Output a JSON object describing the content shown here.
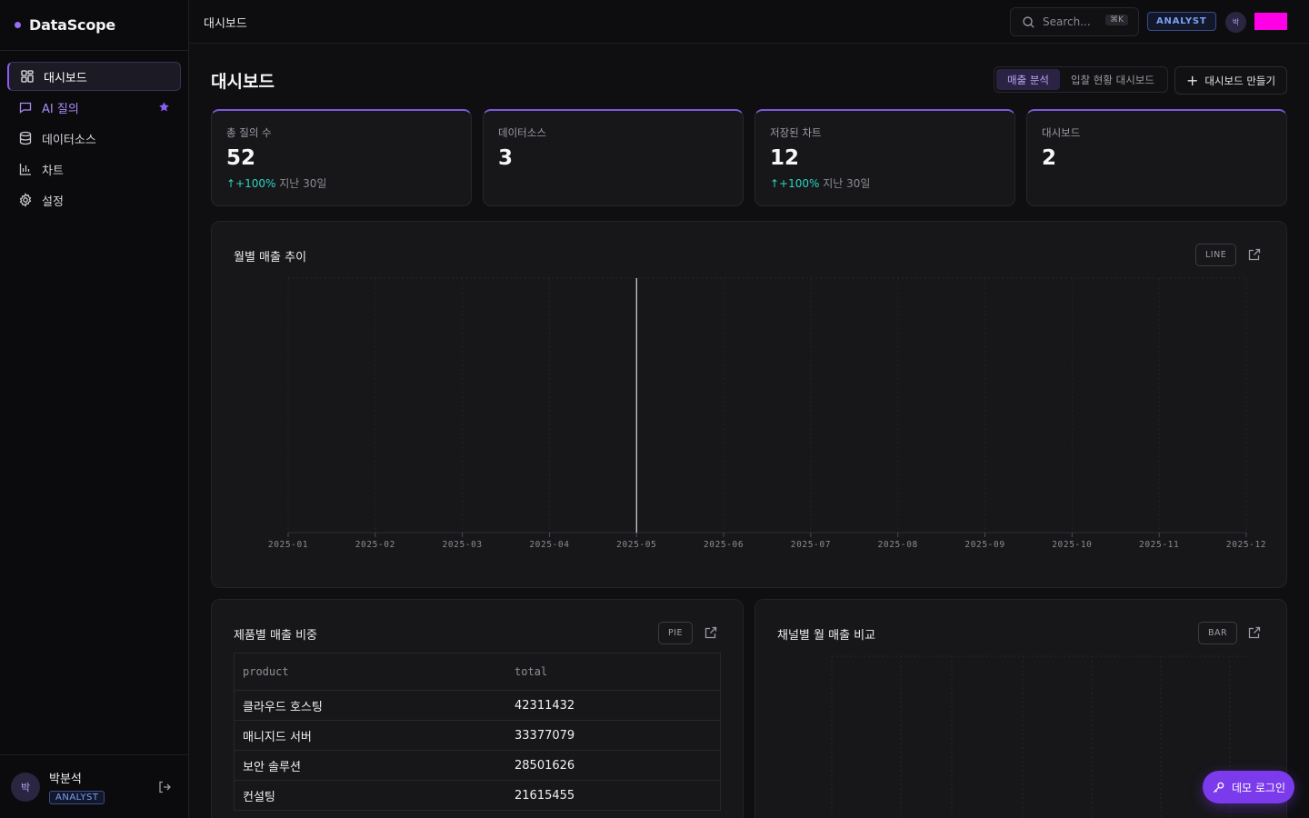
{
  "brand": {
    "name": "DataScope",
    "accent": "#9b6cf5"
  },
  "sidebar": {
    "items": [
      {
        "label": "대시보드",
        "icon": "dashboard-grid-icon",
        "active": true
      },
      {
        "label": "AI 질의",
        "icon": "chat-icon",
        "starred": true
      },
      {
        "label": "데이터소스",
        "icon": "database-icon"
      },
      {
        "label": "차트",
        "icon": "bar-chart-icon"
      },
      {
        "label": "설정",
        "icon": "gear-icon"
      }
    ],
    "user": {
      "name": "박분석",
      "initial": "박",
      "role": "ANALYST"
    }
  },
  "topbar": {
    "breadcrumb": "대시보드",
    "search_placeholder": "Search...",
    "search_shortcut": "⌘K",
    "role_badge": "ANALYST",
    "avatar_initial": "박"
  },
  "page": {
    "title": "대시보드",
    "tabs": [
      {
        "label": "매출 분석",
        "active": true
      },
      {
        "label": "입찰 현황 대시보드",
        "active": false
      }
    ],
    "create_button": "대시보드 만들기"
  },
  "stats": [
    {
      "label": "총 질의 수",
      "value": "52",
      "change": "↑+100%",
      "period": "지난 30일"
    },
    {
      "label": "데이터소스",
      "value": "3",
      "change": "",
      "period": ""
    },
    {
      "label": "저장된 차트",
      "value": "12",
      "change": "↑+100%",
      "period": "지난 30일"
    },
    {
      "label": "대시보드",
      "value": "2",
      "change": "",
      "period": ""
    }
  ],
  "line_card": {
    "title": "월별 매출 추이",
    "type": "LINE"
  },
  "chart_data": {
    "type": "line",
    "x": [
      "2025-01",
      "2025-02",
      "2025-03",
      "2025-04",
      "2025-05",
      "2025-06",
      "2025-07",
      "2025-08",
      "2025-09",
      "2025-10",
      "2025-11",
      "2025-12"
    ],
    "highlight_x": "2025-05",
    "grid": true,
    "title": "월별 매출 추이"
  },
  "pie_card": {
    "title": "제품별 매출 비중",
    "type": "PIE",
    "columns": [
      "product",
      "total"
    ],
    "rows": [
      [
        "클라우드 호스팅",
        "42311432"
      ],
      [
        "매니지드 서버",
        "33377079"
      ],
      [
        "보안 솔루션",
        "28501626"
      ],
      [
        "컨설팅",
        "21615455"
      ]
    ]
  },
  "bar_card": {
    "title": "채널별 월 매출 비교",
    "type": "BAR"
  },
  "demo_login": "데모 로그인",
  "colors": {
    "accent": "#8b5cf6",
    "positive": "#2dd4bf",
    "badge_blue": "#7aa0f5",
    "magenta": "#ff00e6"
  }
}
